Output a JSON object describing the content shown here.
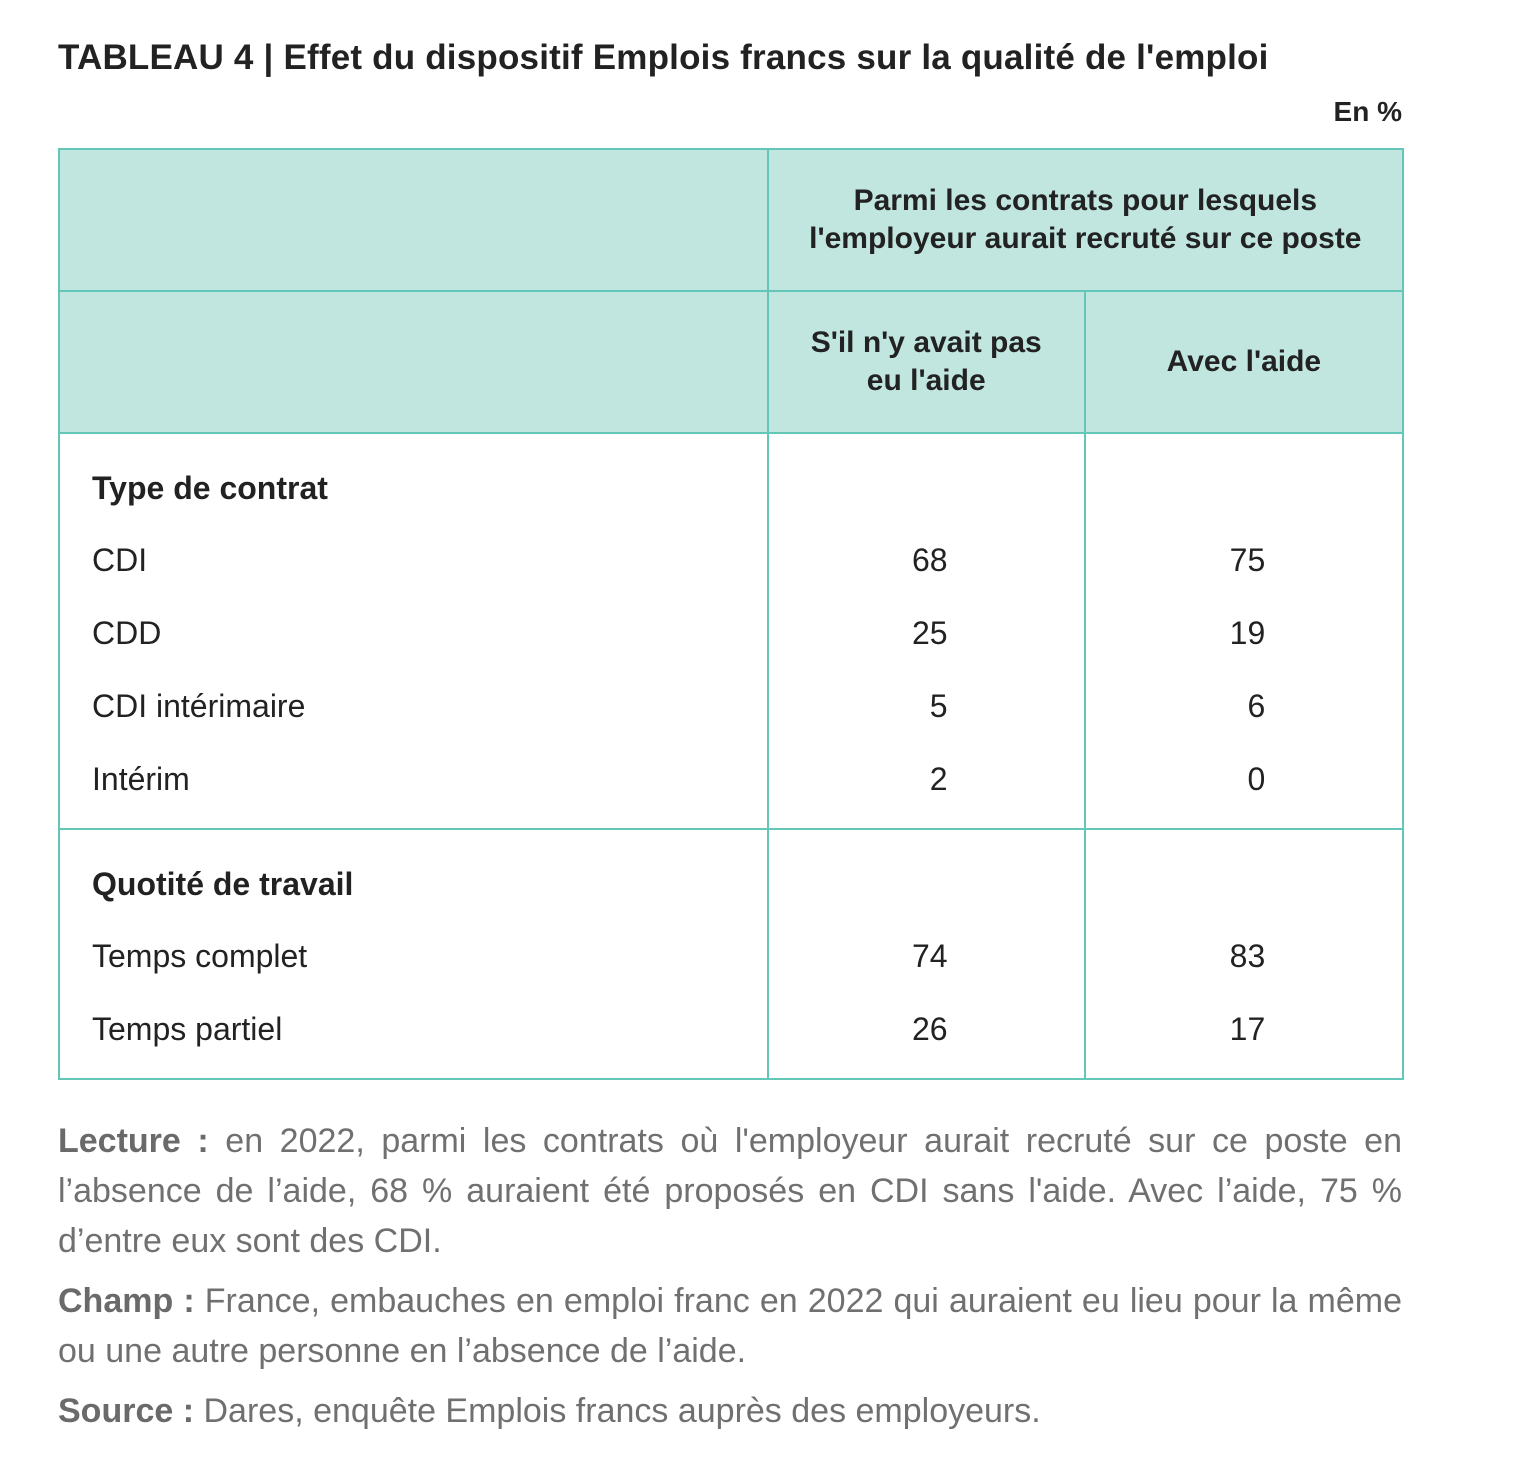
{
  "header": {
    "title": "TABLEAU 4 | Effet du dispositif Emplois francs sur la qualité de l'emploi",
    "unit": "En %"
  },
  "table": {
    "group_header": "Parmi les contrats pour lesquels l'employeur aurait recruté sur ce poste",
    "columns": [
      "S'il n'y avait pas eu l'aide",
      "Avec l'aide"
    ],
    "sections": [
      {
        "title": "Type de contrat",
        "rows": [
          {
            "label": "CDI",
            "values": [
              68,
              75
            ]
          },
          {
            "label": "CDD",
            "values": [
              25,
              19
            ]
          },
          {
            "label": "CDI intérimaire",
            "values": [
              5,
              6
            ]
          },
          {
            "label": "Intérim",
            "values": [
              2,
              0
            ]
          }
        ]
      },
      {
        "title": "Quotité de travail",
        "rows": [
          {
            "label": "Temps complet",
            "values": [
              74,
              83
            ]
          },
          {
            "label": "Temps partiel",
            "values": [
              26,
              17
            ]
          }
        ]
      }
    ]
  },
  "notes": [
    {
      "label": "Lecture :",
      "text": "en 2022, parmi les contrats où l'employeur aurait recruté sur ce poste en l’absence de l’aide, 68 % auraient été proposés en CDI sans l'aide. Avec l’aide, 75 % d’entre eux sont des CDI."
    },
    {
      "label": "Champ :",
      "text": "France, embauches en emploi franc en 2022 qui auraient eu lieu pour la même ou une autre personne en l’absence de l’aide."
    },
    {
      "label": "Source :",
      "text": "Dares, enquête Emplois francs auprès des employeurs."
    }
  ]
}
